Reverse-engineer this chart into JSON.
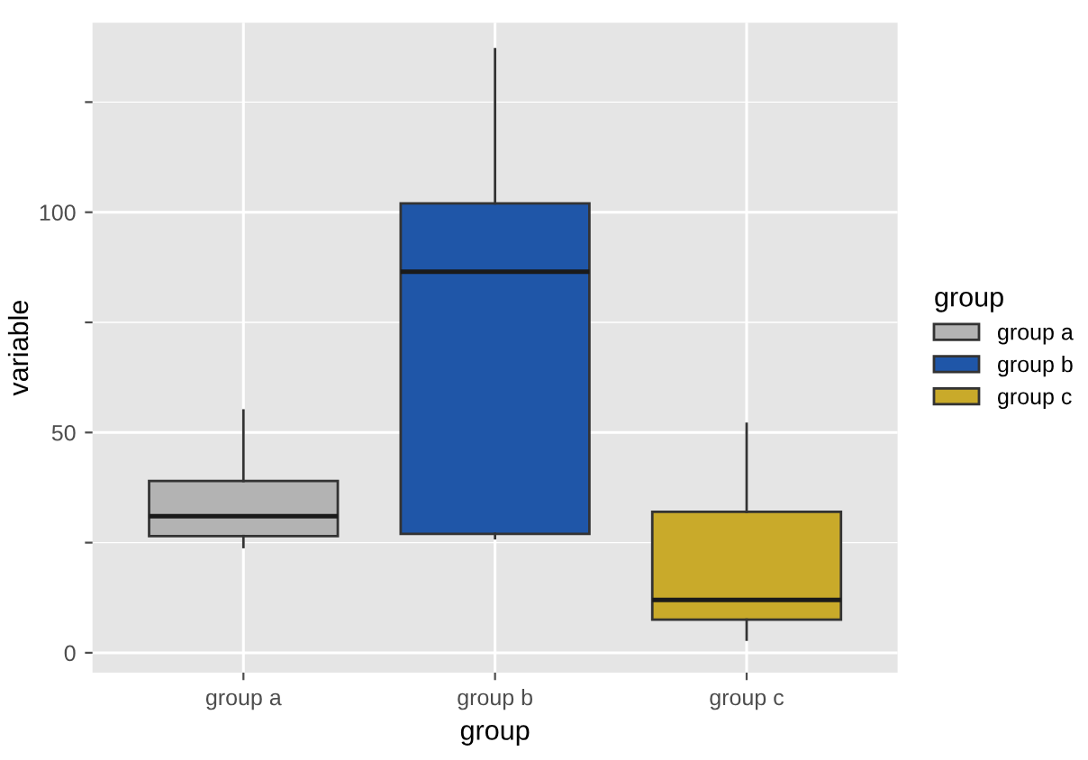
{
  "chart_data": {
    "type": "box",
    "xlabel": "group",
    "ylabel": "variable",
    "legend_title": "group",
    "categories": [
      "group a",
      "group b",
      "group c"
    ],
    "series": [
      {
        "name": "group a",
        "color": "#b3b3b3",
        "boxes": [
          {
            "low": 24,
            "q1": 26.5,
            "median": 31,
            "q3": 39,
            "high": 55
          },
          null,
          null
        ]
      },
      {
        "name": "group b",
        "color": "#1f56a8",
        "boxes": [
          null,
          {
            "low": 26,
            "q1": 27,
            "median": 86.5,
            "q3": 102,
            "high": 137
          },
          null
        ]
      },
      {
        "name": "group c",
        "color": "#c9aa2a",
        "boxes": [
          null,
          null,
          {
            "low": 3,
            "q1": 7.5,
            "median": 12,
            "q3": 32,
            "high": 52
          }
        ]
      }
    ],
    "ylim": [
      -4.5,
      143
    ],
    "yticks": [
      0,
      {
        "value": 25,
        "label": null
      },
      50,
      {
        "value": 75,
        "label": null
      },
      100,
      {
        "value": 125,
        "label": null
      }
    ],
    "grid": true,
    "legend": "right"
  }
}
